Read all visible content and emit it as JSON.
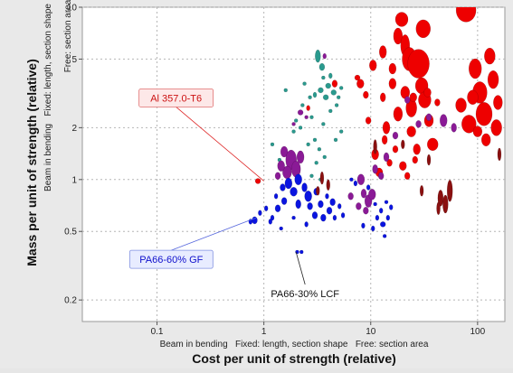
{
  "chart_data": {
    "type": "scatter",
    "x_scale": "log",
    "y_scale": "log",
    "xlim": [
      0.02,
      180
    ],
    "ylim": [
      0.15,
      10
    ],
    "grid": true,
    "xlabel": "Cost per unit of strength (relative)",
    "xlabel_sub": "Beam in bending   Fixed: length, section shape   Free: section area",
    "ylabel": "Mass per unit of strength (relative)",
    "ylabel_sub_1": "Beam in bending   Fixed: length, section shape",
    "ylabel_sub_2": "Free: section area",
    "x_ticks": [
      {
        "value": 0.1,
        "label": "0.1"
      },
      {
        "value": 1,
        "label": "1"
      },
      {
        "value": 10,
        "label": "10"
      },
      {
        "value": 100,
        "label": "100"
      }
    ],
    "y_ticks": [
      {
        "value": 0.2,
        "label": "0.2"
      },
      {
        "value": 0.5,
        "label": "0.5"
      },
      {
        "value": 1,
        "label": "1"
      },
      {
        "value": 2,
        "label": "2"
      },
      {
        "value": 5,
        "label": "5"
      },
      {
        "value": 10,
        "label": "10"
      }
    ],
    "colors": {
      "red": "#ee0000",
      "purple": "#8a1a96",
      "teal": "#2a9a8e",
      "blue": "#0a14e0",
      "darkred": "#8a1010"
    },
    "annotations": [
      {
        "text": "Al 357.0-T6",
        "x": 1.0,
        "y": 0.98,
        "style": "red"
      },
      {
        "text": "PA66-60% GF",
        "x": 0.85,
        "y": 0.6,
        "style": "blue"
      },
      {
        "text": "PA66-30% LCF",
        "x": 2.0,
        "y": 0.38,
        "style": "black"
      }
    ],
    "series": [
      {
        "color": "red",
        "points": [
          [
            10.5,
            4.6,
            4,
            6
          ],
          [
            13,
            5.5,
            4,
            7
          ],
          [
            16,
            4.4,
            4,
            6
          ],
          [
            18,
            6.8,
            5,
            9
          ],
          [
            19.5,
            8.5,
            7,
            8
          ],
          [
            21,
            6,
            5,
            12
          ],
          [
            23,
            5,
            8,
            13
          ],
          [
            24,
            2.6,
            6,
            10
          ],
          [
            21,
            3.2,
            5,
            7
          ],
          [
            18,
            2.4,
            5,
            8
          ],
          [
            16,
            3.6,
            4,
            6
          ],
          [
            14,
            2,
            4,
            7
          ],
          [
            13,
            3,
            3,
            5
          ],
          [
            24,
            1.9,
            5,
            6
          ],
          [
            27,
            1.5,
            4,
            6
          ],
          [
            30,
            3.5,
            7,
            9
          ],
          [
            35,
            2.2,
            5,
            7
          ],
          [
            38,
            1.6,
            6,
            7
          ],
          [
            28,
            4.7,
            12,
            16
          ],
          [
            32,
            2.9,
            7,
            9
          ],
          [
            31,
            7.5,
            8,
            10
          ],
          [
            78,
            9.6,
            11,
            13
          ],
          [
            70,
            2.7,
            6,
            8
          ],
          [
            83,
            2.1,
            8,
            10
          ],
          [
            95,
            4.4,
            7,
            11
          ],
          [
            105,
            3.2,
            8,
            12
          ],
          [
            115,
            2.4,
            9,
            13
          ],
          [
            140,
            3.8,
            6,
            10
          ],
          [
            150,
            2.0,
            6,
            9
          ],
          [
            130,
            5.2,
            6,
            9
          ],
          [
            120,
            1.7,
            5,
            7
          ],
          [
            155,
            2.8,
            5,
            8
          ],
          [
            90,
            3.0,
            6,
            8
          ],
          [
            100,
            1.9,
            5,
            6
          ],
          [
            8,
            3.6,
            4,
            5
          ],
          [
            9,
            3.1,
            3,
            4
          ],
          [
            7.5,
            3.9,
            3,
            3
          ],
          [
            11,
            1.4,
            4,
            6
          ],
          [
            12,
            1.1,
            4,
            5
          ],
          [
            13.5,
            1.7,
            3,
            5
          ],
          [
            20,
            1.2,
            4,
            5
          ],
          [
            17,
            1.5,
            3,
            4
          ],
          [
            22,
            1.05,
            3,
            4
          ],
          [
            26,
            1.3,
            3,
            4
          ],
          [
            9.5,
            2.2,
            3,
            4
          ],
          [
            15,
            1.25,
            3,
            4
          ],
          [
            25,
            3.0,
            4,
            5
          ],
          [
            34,
            3.2,
            4,
            5
          ],
          [
            42,
            2.8,
            3,
            4
          ],
          [
            4.6,
            3.6,
            3,
            4
          ],
          [
            2.6,
            2.6,
            2,
            3
          ],
          [
            0.88,
            0.98,
            3,
            3
          ]
        ]
      },
      {
        "color": "teal",
        "points": [
          [
            3.2,
            5.2,
            3,
            7
          ],
          [
            3.5,
            4.5,
            3,
            4
          ],
          [
            3.4,
            3.3,
            3,
            3
          ],
          [
            3.8,
            3.0,
            3,
            3
          ],
          [
            4.0,
            3.5,
            3,
            3
          ],
          [
            4.2,
            4.0,
            2,
            3
          ],
          [
            3.6,
            3.9,
            2,
            2
          ],
          [
            4.5,
            3.2,
            3,
            3
          ],
          [
            5.0,
            3.0,
            2,
            2
          ],
          [
            4.8,
            2.7,
            2,
            2
          ],
          [
            3.0,
            3.1,
            2,
            3
          ],
          [
            5.3,
            3.4,
            2,
            2
          ],
          [
            2.7,
            3.0,
            2,
            2
          ],
          [
            2.3,
            2.7,
            2,
            2
          ],
          [
            2.0,
            2.2,
            2,
            2
          ],
          [
            2.2,
            2.0,
            2,
            2
          ],
          [
            2.8,
            2.3,
            2,
            2
          ],
          [
            3.0,
            1.7,
            2,
            2
          ],
          [
            3.3,
            1.5,
            2,
            2
          ],
          [
            2.6,
            1.6,
            2,
            2
          ],
          [
            1.9,
            1.9,
            2,
            2
          ],
          [
            3.6,
            2.1,
            2,
            2
          ],
          [
            5.3,
            1.9,
            2,
            2
          ],
          [
            4.7,
            1.7,
            2,
            2
          ],
          [
            3.7,
            1.35,
            2,
            2
          ],
          [
            3.1,
            1.25,
            2,
            2
          ],
          [
            2.4,
            3.6,
            2,
            2
          ],
          [
            1.6,
            3.3,
            2,
            2
          ],
          [
            1.2,
            1.6,
            2,
            2
          ],
          [
            1.4,
            1.3,
            2,
            2
          ],
          [
            2.8,
            1.05,
            2,
            2
          ],
          [
            3.4,
            1.0,
            2,
            2
          ],
          [
            4.2,
            2.5,
            2,
            2
          ]
        ]
      },
      {
        "color": "purple",
        "points": [
          [
            1.55,
            1.45,
            4,
            6
          ],
          [
            1.8,
            1.3,
            6,
            11
          ],
          [
            2.0,
            1.15,
            5,
            9
          ],
          [
            1.65,
            1.1,
            5,
            7
          ],
          [
            1.45,
            1.2,
            4,
            6
          ],
          [
            2.2,
            1.35,
            4,
            7
          ],
          [
            1.35,
            1.05,
            3,
            4
          ],
          [
            2.2,
            2.45,
            3,
            3
          ],
          [
            2.5,
            2.3,
            2,
            2
          ],
          [
            1.9,
            2.1,
            2,
            2
          ],
          [
            3.7,
            5.2,
            2,
            3
          ],
          [
            8.1,
            1.0,
            4,
            6
          ],
          [
            8.6,
            0.83,
            3,
            5
          ],
          [
            9.5,
            0.75,
            4,
            7
          ],
          [
            10.3,
            0.82,
            4,
            6
          ],
          [
            7.7,
            0.7,
            3,
            4
          ],
          [
            9.0,
            0.66,
            3,
            4
          ],
          [
            11,
            1.15,
            3,
            5
          ],
          [
            12.5,
            1.05,
            3,
            4
          ],
          [
            6.5,
            0.8,
            3,
            4
          ],
          [
            14,
            1.35,
            3,
            5
          ],
          [
            17,
            1.8,
            3,
            4
          ],
          [
            22,
            2.9,
            3,
            4
          ],
          [
            28,
            2.1,
            3,
            4
          ],
          [
            35,
            2.3,
            3,
            4
          ],
          [
            48,
            2.2,
            4,
            7
          ],
          [
            60,
            2.0,
            3,
            5
          ]
        ]
      },
      {
        "color": "blue",
        "points": [
          [
            1.7,
            0.95,
            4,
            6
          ],
          [
            2.1,
            1.0,
            4,
            6
          ],
          [
            1.9,
            0.85,
            4,
            5
          ],
          [
            2.4,
            0.9,
            3,
            5
          ],
          [
            2.6,
            0.8,
            4,
            6
          ],
          [
            2.1,
            0.72,
            3,
            5
          ],
          [
            2.7,
            0.7,
            3,
            4
          ],
          [
            1.55,
            0.75,
            3,
            4
          ],
          [
            1.35,
            0.68,
            3,
            4
          ],
          [
            1.2,
            0.6,
            2,
            3
          ],
          [
            1.15,
            0.57,
            2,
            3
          ],
          [
            0.82,
            0.58,
            3,
            4
          ],
          [
            0.75,
            0.57,
            2,
            3
          ],
          [
            0.92,
            0.64,
            2,
            3
          ],
          [
            1.05,
            0.68,
            2,
            3
          ],
          [
            1.3,
            0.8,
            2,
            3
          ],
          [
            1.5,
            0.9,
            3,
            4
          ],
          [
            3.1,
            0.85,
            3,
            4
          ],
          [
            3.4,
            0.72,
            3,
            4
          ],
          [
            3.0,
            0.62,
            3,
            4
          ],
          [
            3.6,
            0.6,
            3,
            4
          ],
          [
            4.1,
            0.66,
            3,
            4
          ],
          [
            4.4,
            0.74,
            3,
            4
          ],
          [
            4.6,
            0.6,
            2,
            3
          ],
          [
            5.1,
            0.7,
            2,
            3
          ],
          [
            5.5,
            0.62,
            2,
            3
          ],
          [
            3.9,
            0.8,
            2,
            3
          ],
          [
            2.5,
            0.55,
            2,
            3
          ],
          [
            1.9,
            0.6,
            2,
            2
          ],
          [
            1.45,
            0.52,
            2,
            2
          ],
          [
            2.05,
            0.38,
            2,
            2
          ],
          [
            2.25,
            0.38,
            2,
            2
          ],
          [
            8.5,
            0.54,
            2,
            3
          ],
          [
            10.5,
            0.52,
            2,
            3
          ],
          [
            11.5,
            0.6,
            2,
            3
          ],
          [
            13,
            0.55,
            3,
            3
          ],
          [
            14.5,
            0.6,
            2,
            3
          ],
          [
            12.5,
            0.66,
            2,
            3
          ],
          [
            11,
            0.72,
            2,
            2
          ],
          [
            9.5,
            0.9,
            2,
            3
          ],
          [
            7.2,
            0.95,
            2,
            3
          ],
          [
            6.6,
            1.0,
            2,
            2
          ],
          [
            13.5,
            0.47,
            2,
            2
          ],
          [
            15.5,
            0.69,
            2,
            3
          ],
          [
            14,
            0.74,
            2,
            2
          ]
        ]
      },
      {
        "color": "darkred",
        "points": [
          [
            11,
            1.55,
            2,
            8
          ],
          [
            3.5,
            1.02,
            2,
            7
          ],
          [
            4.0,
            0.93,
            2,
            6
          ],
          [
            3.2,
            0.86,
            2,
            5
          ],
          [
            30,
            0.86,
            2,
            6
          ],
          [
            45,
            0.78,
            3,
            9
          ],
          [
            55,
            0.86,
            3,
            12
          ],
          [
            50,
            0.72,
            3,
            10
          ],
          [
            43,
            0.68,
            2,
            7
          ],
          [
            35,
            1.3,
            2,
            6
          ],
          [
            160,
            1.4,
            2,
            7
          ],
          [
            20,
            1.6,
            2,
            5
          ]
        ]
      }
    ]
  }
}
